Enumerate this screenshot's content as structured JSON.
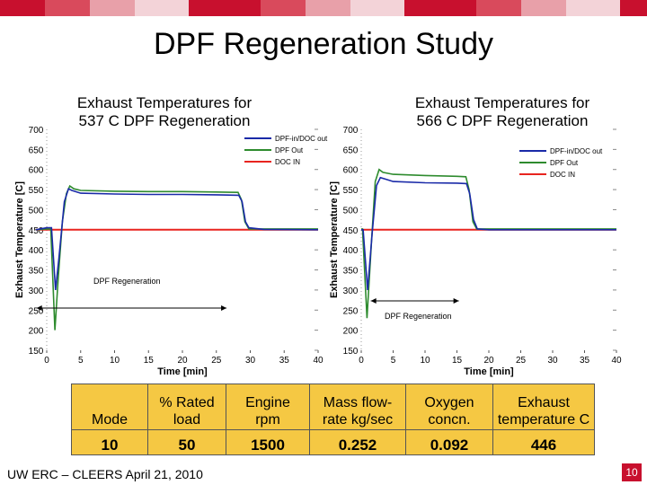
{
  "slide": {
    "title": "DPF Regeneration Study",
    "footer": "UW ERC – CLEERS April 21, 2010",
    "page_number": "10"
  },
  "chart_data": [
    {
      "type": "line",
      "title": "Exhaust Temperatures for 537 C DPF Regeneration",
      "xlabel": "Time [min]",
      "ylabel": "Exhaust Temperature [C]",
      "xlim": [
        0,
        40
      ],
      "ylim": [
        150,
        700
      ],
      "xticks": [
        0,
        5,
        10,
        15,
        20,
        25,
        30,
        35,
        40
      ],
      "yticks": [
        150,
        200,
        250,
        300,
        350,
        400,
        450,
        500,
        550,
        600,
        650,
        700
      ],
      "legend_position": "top-right",
      "annotation": "DPF Regeneration",
      "annotation_span": [
        -1.5,
        26.5
      ],
      "series": [
        {
          "name": "DPF-in/DOC out",
          "color": "#1a2aa8",
          "points": [
            [
              -3,
              450
            ],
            [
              0,
              455
            ],
            [
              0.7,
              455
            ],
            [
              1.3,
              300
            ],
            [
              1.8,
              380
            ],
            [
              2.6,
              520
            ],
            [
              3.2,
              552
            ],
            [
              3.7,
              548
            ],
            [
              5,
              541
            ],
            [
              10,
              539
            ],
            [
              15,
              538
            ],
            [
              20,
              538
            ],
            [
              25,
              537
            ],
            [
              28.3,
              536
            ],
            [
              28.8,
              520
            ],
            [
              29.3,
              470
            ],
            [
              29.8,
              455
            ],
            [
              32,
              451
            ],
            [
              40,
              450
            ]
          ]
        },
        {
          "name": "DPF Out",
          "color": "#2e8b2e",
          "points": [
            [
              -3,
              450
            ],
            [
              0,
              452
            ],
            [
              0.6,
              452
            ],
            [
              1.2,
              200
            ],
            [
              1.7,
              330
            ],
            [
              2.3,
              470
            ],
            [
              2.9,
              540
            ],
            [
              3.4,
              559
            ],
            [
              4,
              552
            ],
            [
              5,
              548
            ],
            [
              10,
              546
            ],
            [
              15,
              545
            ],
            [
              20,
              545
            ],
            [
              25,
              544
            ],
            [
              28.2,
              543
            ],
            [
              28.7,
              525
            ],
            [
              29.2,
              470
            ],
            [
              29.8,
              452
            ],
            [
              32,
              452
            ],
            [
              40,
              452
            ]
          ]
        },
        {
          "name": "DOC IN",
          "color": "#e8241f",
          "points": [
            [
              -3,
              450
            ],
            [
              0,
              450
            ],
            [
              40,
              450
            ]
          ]
        }
      ]
    },
    {
      "type": "line",
      "title": "Exhaust Temperatures for 566 C DPF Regeneration",
      "xlabel": "Time [min]",
      "ylabel": "Exhaust Temperature [C]",
      "xlim": [
        0,
        40
      ],
      "ylim": [
        150,
        700
      ],
      "xticks": [
        0,
        5,
        10,
        15,
        20,
        25,
        30,
        35,
        40
      ],
      "yticks": [
        150,
        200,
        250,
        300,
        350,
        400,
        450,
        500,
        550,
        600,
        650,
        700
      ],
      "legend_position": "top-right",
      "annotation": "DPF Regeneration",
      "annotation_span": [
        1.5,
        15.3
      ],
      "series": [
        {
          "name": "DPF-in/DOC out",
          "color": "#1a2aa8",
          "points": [
            [
              0,
              450
            ],
            [
              0.3,
              450
            ],
            [
              1,
              300
            ],
            [
              1.7,
              440
            ],
            [
              2.4,
              560
            ],
            [
              3,
              580
            ],
            [
              4,
              575
            ],
            [
              5,
              570
            ],
            [
              10,
              567
            ],
            [
              15,
              566
            ],
            [
              16.5,
              565
            ],
            [
              17,
              540
            ],
            [
              17.6,
              475
            ],
            [
              18.2,
              452
            ],
            [
              20,
              450
            ],
            [
              40,
              450
            ]
          ]
        },
        {
          "name": "DPF Out",
          "color": "#2e8b2e",
          "points": [
            [
              0,
              452
            ],
            [
              0.2,
              452
            ],
            [
              0.9,
              230
            ],
            [
              1.6,
              420
            ],
            [
              2.2,
              570
            ],
            [
              2.8,
              600
            ],
            [
              3.4,
              593
            ],
            [
              5,
              588
            ],
            [
              10,
              585
            ],
            [
              15,
              583
            ],
            [
              16.4,
              582
            ],
            [
              16.9,
              550
            ],
            [
              17.5,
              470
            ],
            [
              18.1,
              452
            ],
            [
              20,
              452
            ],
            [
              40,
              452
            ]
          ]
        },
        {
          "name": "DOC IN",
          "color": "#e8241f",
          "points": [
            [
              0,
              450
            ],
            [
              40,
              450
            ]
          ]
        }
      ]
    }
  ],
  "table": {
    "headers": [
      "Mode",
      "% Rated load",
      "Engine rpm",
      "Mass flow-rate kg/sec",
      "Oxygen concn.",
      "Exhaust temperature C"
    ],
    "header_lines": [
      [
        "Mode"
      ],
      [
        "% Rated",
        "load"
      ],
      [
        "Engine",
        "rpm"
      ],
      [
        "Mass flow-",
        "rate kg/sec"
      ],
      [
        "Oxygen",
        "concn."
      ],
      [
        "Exhaust",
        "temperature C"
      ]
    ],
    "rows": [
      [
        "10",
        "50",
        "1500",
        "0.252",
        "0.092",
        "446"
      ]
    ],
    "background": "#f5c843"
  }
}
